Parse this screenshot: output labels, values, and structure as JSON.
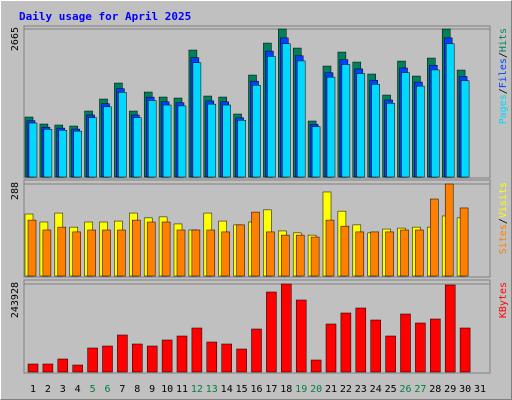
{
  "legend_separator": "/",
  "chart_data": [
    {
      "type": "bar",
      "title": "Daily usage for April 2025",
      "ylim": [
        0,
        2665
      ],
      "yticks": [
        2665
      ],
      "grid": true,
      "series": [
        {
          "name": "Hits",
          "color": "#00805c",
          "values": [
            1080,
            954,
            936,
            918,
            1188,
            1404,
            1692,
            1188,
            1530,
            1440,
            1422,
            2286,
            1458,
            1440,
            1134,
            1836,
            2412,
            2665,
            2322,
            1008,
            1998,
            2250,
            2070,
            1854,
            1476,
            2088,
            1818,
            2142,
            2665,
            1926,
            null
          ]
        },
        {
          "name": "Files",
          "color": "#0040ff",
          "values": [
            1015,
            897,
            880,
            863,
            1117,
            1320,
            1590,
            1117,
            1438,
            1354,
            1337,
            2149,
            1371,
            1354,
            1066,
            1726,
            2267,
            2505,
            2183,
            948,
            1878,
            2115,
            1946,
            1743,
            1387,
            1963,
            1709,
            2013,
            2505,
            1810,
            null
          ]
        },
        {
          "name": "Pages",
          "color": "#00d8ff",
          "values": [
            972,
            859,
            842,
            826,
            1069,
            1264,
            1523,
            1069,
            1377,
            1296,
            1280,
            2057,
            1312,
            1296,
            1021,
            1652,
            2171,
            2399,
            2090,
            907,
            1798,
            2025,
            1863,
            1669,
            1328,
            1879,
            1636,
            1928,
            2399,
            1733,
            null
          ]
        }
      ]
    },
    {
      "type": "bar",
      "ylim": [
        0,
        288
      ],
      "yticks": [
        288
      ],
      "grid": true,
      "series": [
        {
          "name": "Visits",
          "color": "#ffff00",
          "values": [
            194,
            169,
            197,
            153,
            169,
            169,
            172,
            197,
            182,
            185,
            163,
            144,
            197,
            172,
            160,
            169,
            207,
            141,
            135,
            128,
            263,
            203,
            160,
            135,
            147,
            150,
            153,
            153,
            188,
            182,
            null
          ]
        },
        {
          "name": "Sites",
          "color": "#ff8000",
          "values": [
            175,
            144,
            153,
            138,
            144,
            144,
            144,
            175,
            169,
            169,
            144,
            144,
            144,
            138,
            160,
            200,
            138,
            128,
            128,
            122,
            175,
            156,
            138,
            138,
            138,
            144,
            144,
            241,
            288,
            213,
            null
          ]
        }
      ]
    },
    {
      "type": "bar",
      "ylim": [
        0,
        243928
      ],
      "yticks": [
        243928
      ],
      "grid": true,
      "categories": [
        "1",
        "2",
        "3",
        "4",
        "5",
        "6",
        "7",
        "8",
        "9",
        "10",
        "11",
        "12",
        "13",
        "14",
        "15",
        "16",
        "17",
        "18",
        "19",
        "20",
        "21",
        "22",
        "23",
        "24",
        "25",
        "26",
        "27",
        "28",
        "29",
        "30",
        "31"
      ],
      "category_colors": [
        "#000000",
        "#000000",
        "#000000",
        "#000000",
        "#008040",
        "#008040",
        "#000000",
        "#000000",
        "#000000",
        "#000000",
        "#000000",
        "#008040",
        "#008040",
        "#000000",
        "#000000",
        "#000000",
        "#000000",
        "#000000",
        "#008040",
        "#008040",
        "#000000",
        "#000000",
        "#000000",
        "#000000",
        "#000000",
        "#008040",
        "#008040",
        "#000000",
        "#000000",
        "#000000",
        "#000000"
      ],
      "series": [
        {
          "name": "KBytes",
          "color": "#ff0000",
          "values": [
            22176,
            22176,
            36036,
            19404,
            66528,
            72072,
            102564,
            77616,
            72072,
            88704,
            99792,
            121968,
            83160,
            77616,
            63756,
            119196,
            221760,
            243928,
            199584,
            33264,
            133056,
            163548,
            177408,
            144144,
            99792,
            160776,
            135828,
            146916,
            241164,
            121968,
            null
          ]
        }
      ]
    }
  ]
}
